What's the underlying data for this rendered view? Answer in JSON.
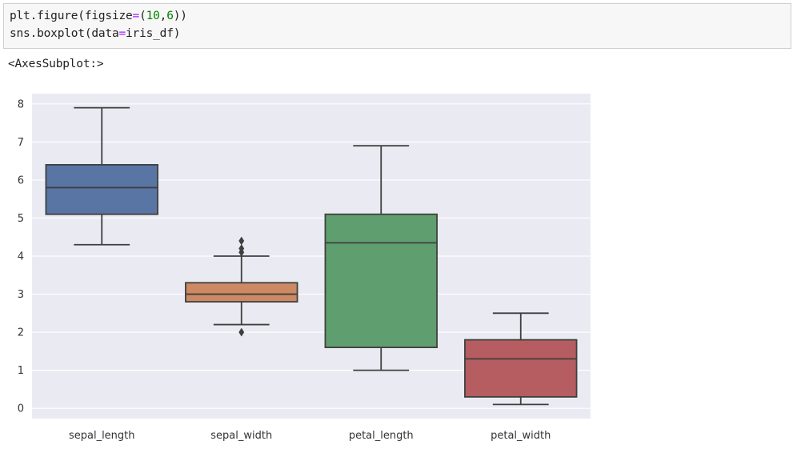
{
  "code_cell": {
    "line1": {
      "fn": "plt.figure(figsize",
      "eq": "=",
      "open": "(",
      "n1": "10",
      "comma": ",",
      "n2": "6",
      "close": "))"
    },
    "line2": {
      "pre": "sns.boxplot(data",
      "eq": "=",
      "post": "iris_df)"
    }
  },
  "output": {
    "text": "<AxesSubplot:>"
  },
  "chart_data": {
    "type": "box",
    "categories": [
      "sepal_length",
      "sepal_width",
      "petal_length",
      "petal_width"
    ],
    "colors": [
      "#5975a4",
      "#cc8963",
      "#5f9e6e",
      "#b55d60"
    ],
    "background": "#eaeaf2",
    "grid": true,
    "ylim": [
      -0.27,
      8.27
    ],
    "yticks": [
      0,
      1,
      2,
      3,
      4,
      5,
      6,
      7,
      8
    ],
    "boxes": [
      {
        "whislo": 4.3,
        "q1": 5.1,
        "med": 5.8,
        "q3": 6.4,
        "whishi": 7.9,
        "fliers": []
      },
      {
        "whislo": 2.2,
        "q1": 2.8,
        "med": 3.0,
        "q3": 3.3,
        "whishi": 4.0,
        "fliers": [
          4.4,
          4.1,
          4.2,
          2.0
        ]
      },
      {
        "whislo": 1.0,
        "q1": 1.6,
        "med": 4.35,
        "q3": 5.1,
        "whishi": 6.9,
        "fliers": []
      },
      {
        "whislo": 0.1,
        "q1": 0.3,
        "med": 1.3,
        "q3": 1.8,
        "whishi": 2.5,
        "fliers": []
      }
    ]
  }
}
